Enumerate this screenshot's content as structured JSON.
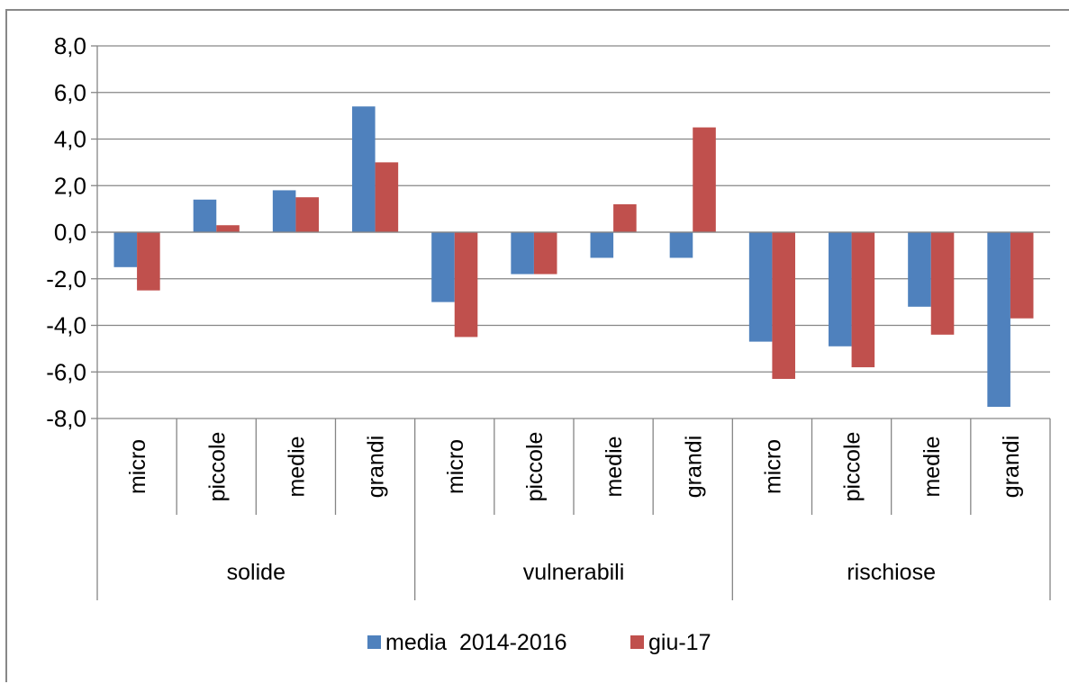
{
  "chart_data": {
    "type": "bar",
    "title": "",
    "xlabel": "",
    "ylabel": "",
    "ylim": [
      -8,
      8
    ],
    "yticks": [
      "8,0",
      "6,0",
      "4,0",
      "2,0",
      "0,0",
      "-2,0",
      "-4,0",
      "-6,0",
      "-8,0"
    ],
    "grid": true,
    "legend_position": "bottom",
    "groups": [
      {
        "label": "solide",
        "categories": [
          "micro",
          "piccole",
          "medie",
          "grandi"
        ]
      },
      {
        "label": "vulnerabili",
        "categories": [
          "micro",
          "piccole",
          "medie",
          "grandi"
        ]
      },
      {
        "label": "rischiose",
        "categories": [
          "micro",
          "piccole",
          "medie",
          "grandi"
        ]
      }
    ],
    "series": [
      {
        "name": "media  2014-2016",
        "color": "#4f81bd",
        "values": [
          -1.5,
          1.4,
          1.8,
          5.4,
          -3.0,
          -1.8,
          -1.1,
          -1.1,
          -4.7,
          -4.9,
          -3.2,
          -7.5
        ]
      },
      {
        "name": "giu-17",
        "color": "#c0504d",
        "values": [
          -2.5,
          0.3,
          1.5,
          3.0,
          -4.5,
          -1.8,
          1.2,
          4.5,
          -6.3,
          -5.8,
          -4.4,
          -3.7
        ]
      }
    ]
  }
}
